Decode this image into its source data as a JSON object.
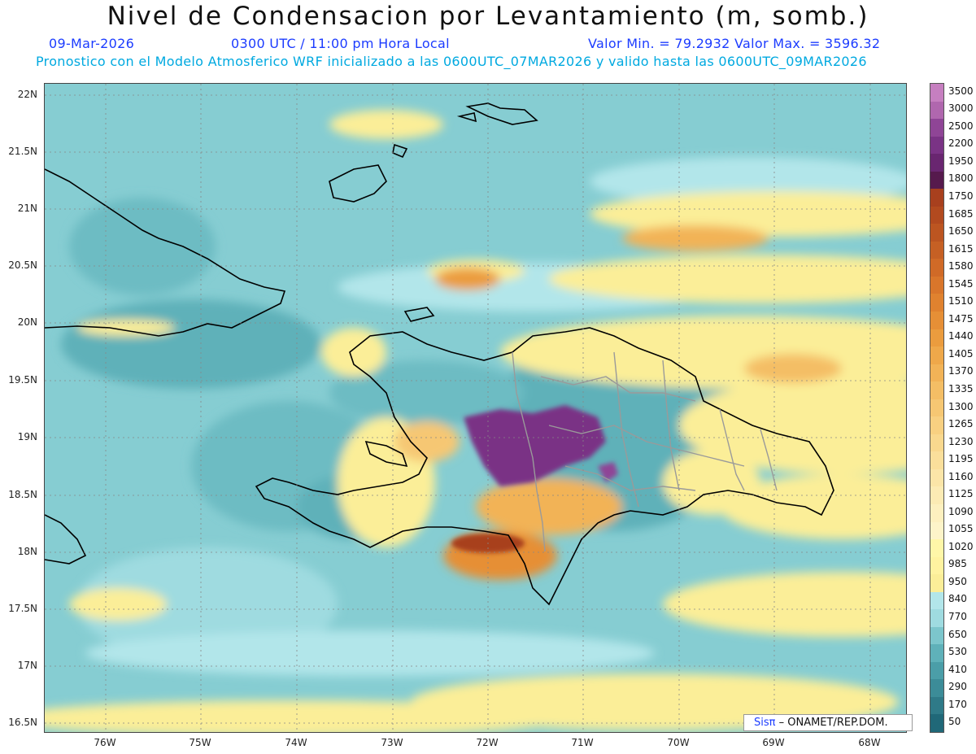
{
  "header": {
    "title": "Nivel de Condensacion por Levantamiento (m, somb.)",
    "date": "09-Mar-2026",
    "time": "0300 UTC / 11:00 pm Hora Local",
    "range": "Valor Min. = 79.2932   Valor Max. = 3596.32",
    "model_line": "Pronostico con el Modelo Atmosferico WRF inicializado a las 0600UTC_07MAR2026 y valido hasta las  0600UTC_09MAR2026"
  },
  "axes": {
    "lat_labels": [
      "22N",
      "21.5N",
      "21N",
      "20.5N",
      "20N",
      "19.5N",
      "19N",
      "18.5N",
      "18N",
      "17.5N",
      "17N",
      "16.5N"
    ],
    "lon_labels": [
      "76W",
      "75W",
      "74W",
      "73W",
      "72W",
      "71W",
      "70W",
      "69W",
      "68W"
    ]
  },
  "legend": {
    "labels": [
      "3500",
      "3000",
      "2500",
      "2200",
      "1950",
      "1800",
      "1750",
      "1685",
      "1650",
      "1615",
      "1580",
      "1545",
      "1510",
      "1475",
      "1440",
      "1405",
      "1370",
      "1335",
      "1300",
      "1265",
      "1230",
      "1195",
      "1160",
      "1125",
      "1090",
      "1055",
      "1020",
      "985",
      "950",
      "840",
      "770",
      "650",
      "530",
      "410",
      "290",
      "170",
      "50"
    ],
    "colors": [
      "#c67fc0",
      "#b067ae",
      "#8f4596",
      "#7a3385",
      "#692670",
      "#561a4d",
      "#a8401e",
      "#b24a1f",
      "#bc5521",
      "#c66024",
      "#d06a27",
      "#d9762b",
      "#e0822f",
      "#e68f36",
      "#eb9c3e",
      "#efa84a",
      "#f2b357",
      "#f4be65",
      "#f6c773",
      "#f8d081",
      "#f9d88e",
      "#fadf9b",
      "#fbe5a8",
      "#fcebb4",
      "#fdf0bf",
      "#fdf4c9",
      "#fff7a8",
      "#fff3a0",
      "#fbee98",
      "#b2e6ea",
      "#9fdbe0",
      "#7cc6cc",
      "#5fb1b9",
      "#4b9ea8",
      "#3c8c98",
      "#2f7a88",
      "#206878"
    ]
  },
  "credit": {
    "brand": "Sisπ",
    "text": " – ONAMET/REP.DOM."
  }
}
